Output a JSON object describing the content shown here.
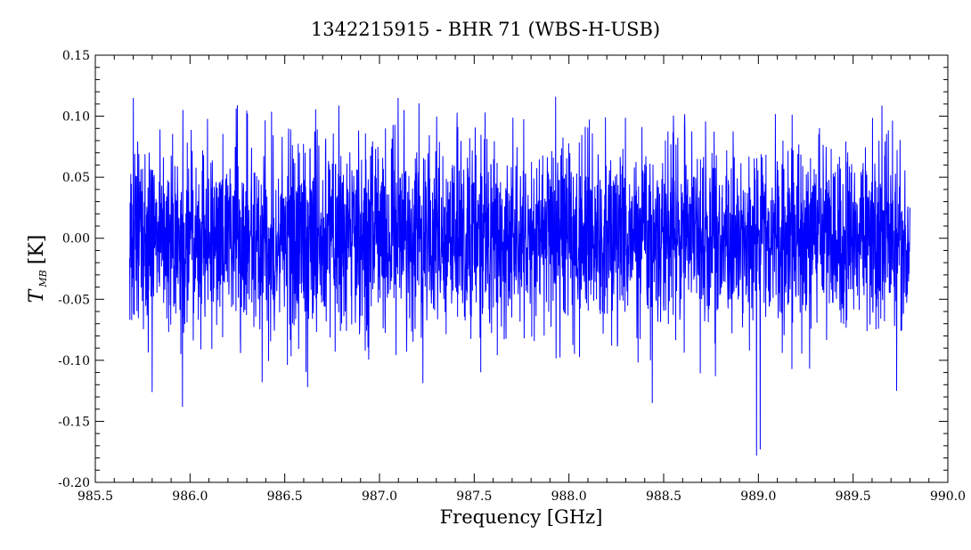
{
  "chart_data": {
    "type": "line",
    "title": "1342215915 - BHR 71 (WBS-H-USB)",
    "xlabel": "Frequency [GHz]",
    "ylabel_symbol": "T",
    "ylabel_subscript": "MB",
    "ylabel_unit": "[K]",
    "xlim": [
      985.5,
      990.0
    ],
    "ylim": [
      -0.2,
      0.15
    ],
    "x_ticks": [
      "985.5",
      "986.0",
      "986.5",
      "987.0",
      "987.5",
      "988.0",
      "988.5",
      "989.0",
      "989.5",
      "990.0"
    ],
    "y_ticks": [
      "-0.20",
      "-0.15",
      "-0.10",
      "-0.05",
      "0.00",
      "0.05",
      "0.10",
      "0.15"
    ],
    "grid": false,
    "series": [
      {
        "color": "#0000ff",
        "x_range": [
          985.68,
          989.8
        ],
        "baseline": 0.0,
        "noise_sigma": 0.038,
        "min_value": -0.178,
        "max_value": 0.116,
        "x_sample": [
          985.7,
          985.8,
          985.96,
          986.25,
          986.38,
          986.62,
          987.45,
          987.93,
          988.44,
          988.99,
          989.01,
          989.73
        ],
        "y_sample": [
          0.115,
          -0.126,
          -0.138,
          0.109,
          -0.118,
          -0.122,
          -0.06,
          0.116,
          -0.135,
          -0.178,
          -0.173,
          -0.125
        ]
      }
    ]
  }
}
